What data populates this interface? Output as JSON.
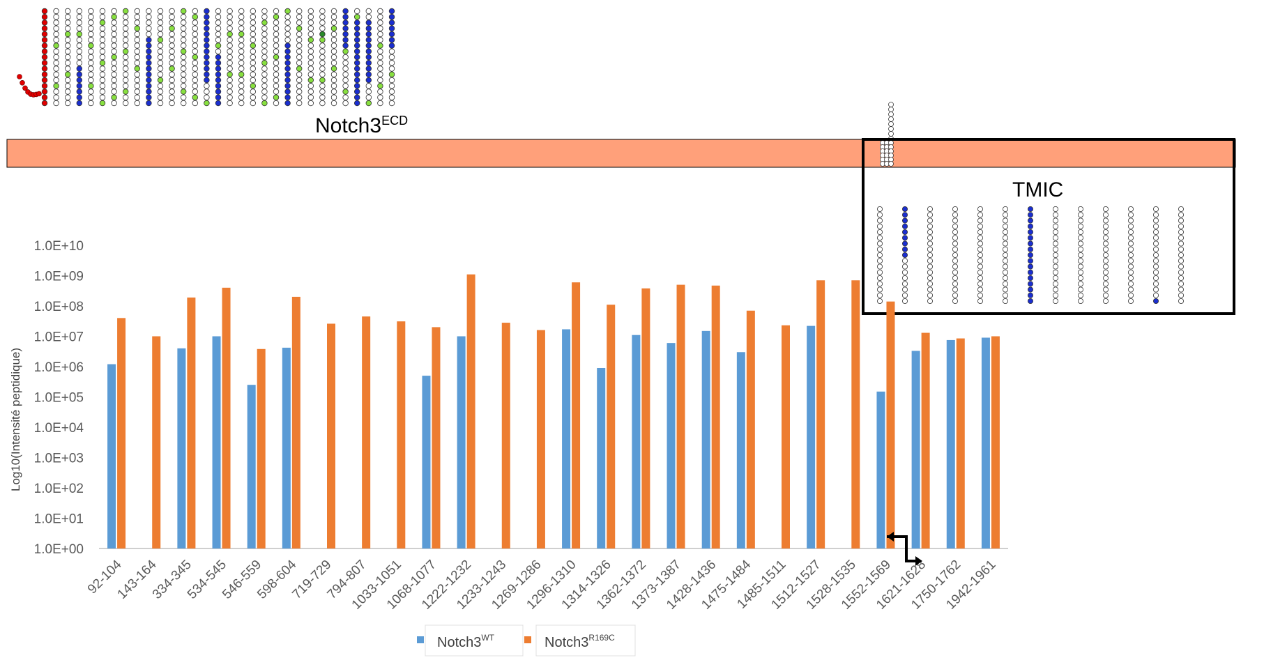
{
  "figure": {
    "ecd_label": "Notch3",
    "ecd_sup": "ECD",
    "tmic_label": "TMIC",
    "membrane_color": "#ffa07a",
    "residue_colors": {
      "default": "#ffffff",
      "signal_peptide": "#e00000",
      "cysteine": "#88e040",
      "peptide_detected": "#1a2ed0",
      "glycosylation": "#2a8a2a"
    }
  },
  "chart_data": {
    "type": "bar",
    "ylabel": "Log10(Intensité peptidique)",
    "yscale": "log",
    "ylim": [
      1,
      10000000000
    ],
    "yticks": [
      "1.0E+00",
      "1.0E+01",
      "1.0E+02",
      "1.0E+03",
      "1.0E+04",
      "1.0E+05",
      "1.0E+06",
      "1.0E+07",
      "1.0E+08",
      "1.0E+09",
      "1.0E+10"
    ],
    "categories": [
      "92-104",
      "143-164",
      "334-345",
      "534-545",
      "546-559",
      "598-604",
      "719-729",
      "794-807",
      "1033-1051",
      "1068-1077",
      "1222-1232",
      "1233-1243",
      "1269-1286",
      "1296-1310",
      "1314-1326",
      "1362-1372",
      "1373-1387",
      "1428-1436",
      "1475-1484",
      "1485-1511",
      "1512-1527",
      "1528-1535",
      "1552-1569",
      "1621-1628",
      "1750-1762",
      "1942-1961"
    ],
    "series": [
      {
        "name": "Notch3",
        "sup": "WT",
        "color": "#5b9bd5",
        "values": [
          1200000,
          null,
          4000000,
          10000000,
          250000,
          4200000,
          null,
          null,
          null,
          500000,
          10000000,
          null,
          null,
          17000000,
          900000,
          11000000,
          6000000,
          15000000,
          3000000,
          null,
          22000000,
          null,
          150000,
          3300000,
          7500000,
          9000000
        ]
      },
      {
        "name": "Notch3",
        "sup": "R169C",
        "color": "#ed7d31",
        "values": [
          40000000,
          10000000,
          190000000,
          400000000,
          3800000,
          200000000,
          26000000,
          45000000,
          31000000,
          20000000,
          1100000000,
          28000000,
          16000000,
          600000000,
          110000000,
          380000000,
          500000000,
          470000000,
          70000000,
          23000000,
          700000000,
          700000000,
          140000000,
          13000000,
          8500000,
          10000000
        ]
      }
    ],
    "legend": "bottom"
  }
}
